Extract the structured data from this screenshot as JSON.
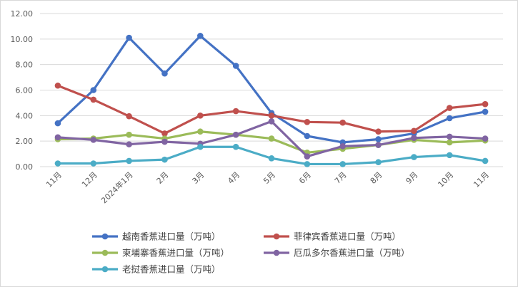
{
  "chart_data": {
    "type": "line",
    "title": "",
    "xlabel": "",
    "ylabel": "",
    "ylim": [
      0,
      12
    ],
    "y_ticks": [
      "0.00",
      "2.00",
      "4.00",
      "6.00",
      "8.00",
      "10.00",
      "12.00"
    ],
    "grid": "horizontal",
    "legend_position": "bottom",
    "categories": [
      "11月",
      "12月",
      "2024年1月",
      "2月",
      "3月",
      "4月",
      "5月",
      "6月",
      "7月",
      "8月",
      "9月",
      "10月",
      "11月"
    ],
    "series": [
      {
        "name": "越南香蕉进口量（万吨）",
        "color": "#4472c4",
        "values": [
          3.4,
          6.0,
          10.1,
          7.3,
          10.25,
          7.9,
          4.2,
          2.4,
          1.9,
          2.15,
          2.6,
          3.8,
          4.3
        ]
      },
      {
        "name": "菲律宾香蕉进口量（万吨）",
        "color": "#c0504d",
        "values": [
          6.35,
          5.25,
          3.95,
          2.6,
          4.0,
          4.35,
          4.0,
          3.5,
          3.45,
          2.75,
          2.8,
          4.6,
          4.9
        ]
      },
      {
        "name": "柬埔寨香蕉进口量（万吨）",
        "color": "#9bbb59",
        "values": [
          2.15,
          2.2,
          2.5,
          2.2,
          2.75,
          2.5,
          2.2,
          1.1,
          1.4,
          1.7,
          2.1,
          1.9,
          2.05
        ]
      },
      {
        "name": "厄瓜多尔香蕉进口量（万吨）",
        "color": "#8064a2",
        "values": [
          2.3,
          2.1,
          1.75,
          1.95,
          1.8,
          2.5,
          3.55,
          0.8,
          1.6,
          1.7,
          2.25,
          2.35,
          2.2
        ]
      },
      {
        "name": "老挝香蕉进口量（万吨）",
        "color": "#4bacc6",
        "values": [
          0.25,
          0.25,
          0.45,
          0.55,
          1.55,
          1.55,
          0.65,
          0.2,
          0.2,
          0.35,
          0.75,
          0.9,
          0.45
        ]
      }
    ]
  }
}
